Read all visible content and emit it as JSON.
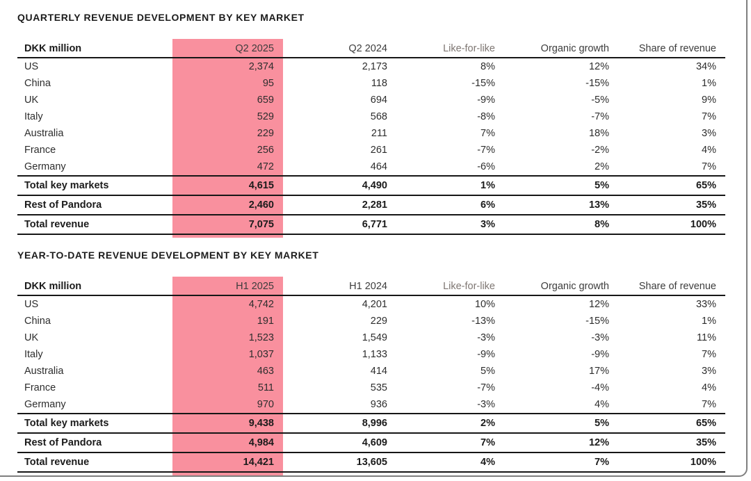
{
  "page": {
    "highlight_color": "#F9909E",
    "frame_color": "#7f7f7f",
    "text_color": "#2d2d2d"
  },
  "tables": [
    {
      "title": "QUARTERLY REVENUE DEVELOPMENT BY KEY MARKET",
      "columns": [
        "DKK million",
        "Q2 2025",
        "Q2 2024",
        "Like-for-like",
        "Organic growth",
        "Share of revenue"
      ],
      "highlight_column": "Q2 2025",
      "rows": [
        {
          "label": "US",
          "values": [
            "2,374",
            "2,173",
            "8%",
            "12%",
            "34%"
          ]
        },
        {
          "label": "China",
          "values": [
            "95",
            "118",
            "-15%",
            "-15%",
            "1%"
          ]
        },
        {
          "label": "UK",
          "values": [
            "659",
            "694",
            "-9%",
            "-5%",
            "9%"
          ]
        },
        {
          "label": "Italy",
          "values": [
            "529",
            "568",
            "-8%",
            "-7%",
            "7%"
          ]
        },
        {
          "label": "Australia",
          "values": [
            "229",
            "211",
            "7%",
            "18%",
            "3%"
          ]
        },
        {
          "label": "France",
          "values": [
            "256",
            "261",
            "-7%",
            "-2%",
            "4%"
          ]
        },
        {
          "label": "Germany",
          "values": [
            "472",
            "464",
            "-6%",
            "2%",
            "7%"
          ]
        }
      ],
      "total_rows": [
        {
          "label": "Total key markets",
          "values": [
            "4,615",
            "4,490",
            "1%",
            "5%",
            "65%"
          ]
        },
        {
          "label": "Rest of Pandora",
          "values": [
            "2,460",
            "2,281",
            "6%",
            "13%",
            "35%"
          ]
        },
        {
          "label": "Total revenue",
          "values": [
            "7,075",
            "6,771",
            "3%",
            "8%",
            "100%"
          ]
        }
      ]
    },
    {
      "title": "YEAR-TO-DATE REVENUE DEVELOPMENT BY KEY MARKET",
      "columns": [
        "DKK million",
        "H1 2025",
        "H1 2024",
        "Like-for-like",
        "Organic growth",
        "Share of revenue"
      ],
      "highlight_column": "H1 2025",
      "rows": [
        {
          "label": "US",
          "values": [
            "4,742",
            "4,201",
            "10%",
            "12%",
            "33%"
          ]
        },
        {
          "label": "China",
          "values": [
            "191",
            "229",
            "-13%",
            "-15%",
            "1%"
          ]
        },
        {
          "label": "UK",
          "values": [
            "1,523",
            "1,549",
            "-3%",
            "-3%",
            "11%"
          ]
        },
        {
          "label": "Italy",
          "values": [
            "1,037",
            "1,133",
            "-9%",
            "-9%",
            "7%"
          ]
        },
        {
          "label": "Australia",
          "values": [
            "463",
            "414",
            "5%",
            "17%",
            "3%"
          ]
        },
        {
          "label": "France",
          "values": [
            "511",
            "535",
            "-7%",
            "-4%",
            "4%"
          ]
        },
        {
          "label": "Germany",
          "values": [
            "970",
            "936",
            "-3%",
            "4%",
            "7%"
          ]
        }
      ],
      "total_rows": [
        {
          "label": "Total key markets",
          "values": [
            "9,438",
            "8,996",
            "2%",
            "5%",
            "65%"
          ]
        },
        {
          "label": "Rest of Pandora",
          "values": [
            "4,984",
            "4,609",
            "7%",
            "12%",
            "35%"
          ]
        },
        {
          "label": "Total revenue",
          "values": [
            "14,421",
            "13,605",
            "4%",
            "7%",
            "100%"
          ]
        }
      ]
    }
  ]
}
